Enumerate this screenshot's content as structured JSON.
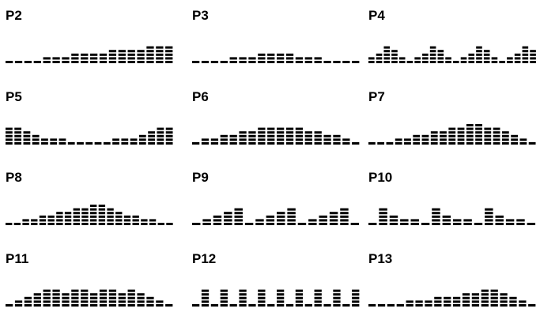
{
  "bar_color": "#000000",
  "panels": [
    {
      "label": "P2",
      "levels": [
        1,
        1,
        1,
        1,
        2,
        2,
        2,
        3,
        3,
        3,
        3,
        4,
        4,
        4,
        4,
        5,
        5,
        5
      ]
    },
    {
      "label": "P3",
      "levels": [
        1,
        1,
        1,
        1,
        2,
        2,
        2,
        3,
        3,
        3,
        3,
        2,
        2,
        2,
        1,
        1,
        1,
        1
      ]
    },
    {
      "label": "P4",
      "levels": [
        2,
        3,
        5,
        4,
        2,
        1,
        2,
        3,
        5,
        4,
        2,
        1,
        2,
        3,
        5,
        4,
        2,
        1,
        2,
        3,
        5,
        4
      ]
    },
    {
      "label": "P5",
      "levels": [
        5,
        5,
        4,
        3,
        2,
        2,
        2,
        1,
        1,
        1,
        1,
        1,
        2,
        2,
        2,
        3,
        4,
        5,
        5
      ]
    },
    {
      "label": "P6",
      "levels": [
        1,
        2,
        2,
        3,
        3,
        4,
        4,
        5,
        5,
        5,
        5,
        5,
        4,
        4,
        3,
        3,
        2,
        1
      ]
    },
    {
      "label": "P7",
      "levels": [
        1,
        1,
        1,
        2,
        2,
        3,
        3,
        4,
        4,
        5,
        5,
        6,
        6,
        5,
        5,
        4,
        3,
        2,
        1
      ]
    },
    {
      "label": "P8",
      "levels": [
        1,
        1,
        2,
        2,
        3,
        3,
        4,
        4,
        5,
        5,
        6,
        6,
        5,
        4,
        3,
        3,
        2,
        2,
        1,
        1
      ]
    },
    {
      "label": "P9",
      "levels": [
        1,
        2,
        3,
        4,
        5,
        1,
        2,
        3,
        4,
        5,
        1,
        2,
        3,
        4,
        5,
        1
      ]
    },
    {
      "label": "P10",
      "levels": [
        1,
        5,
        3,
        2,
        2,
        1,
        5,
        3,
        2,
        2,
        1,
        5,
        3,
        2,
        2,
        1
      ]
    },
    {
      "label": "P11",
      "levels": [
        1,
        2,
        3,
        4,
        5,
        5,
        4,
        5,
        5,
        4,
        5,
        5,
        4,
        5,
        4,
        3,
        2,
        1
      ]
    },
    {
      "label": "P12",
      "levels": [
        1,
        5,
        1,
        5,
        1,
        5,
        1,
        5,
        1,
        5,
        1,
        5,
        1,
        5,
        1,
        5,
        1,
        5
      ]
    },
    {
      "label": "P13",
      "levels": [
        1,
        1,
        1,
        1,
        2,
        2,
        2,
        3,
        3,
        3,
        4,
        4,
        5,
        5,
        4,
        3,
        2,
        1
      ]
    }
  ]
}
